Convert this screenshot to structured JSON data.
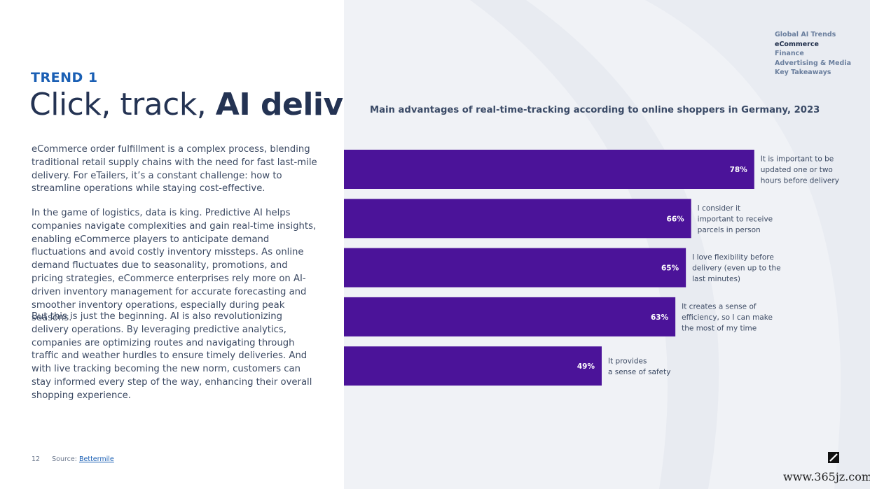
{
  "header": {
    "trend_label": "TREND 1",
    "headline_light": "Click, track, ",
    "headline_bold": "AI deliver"
  },
  "body": {
    "p1": "eCommerce order fulfillment is a complex process, blending traditional retail supply chains with the need for fast last-mile delivery. For eTailers, it’s a constant challenge: how to streamline operations while staying cost-effective.",
    "p2": "In the game of logistics, data is king. Predictive AI helps companies navigate complexities and gain real-time insights, enabling eCommerce players to anticipate demand fluctuations and avoid costly inventory missteps. As online demand fluctuates due to seasonality, promotions, and pricing strategies, eCommerce enterprises rely more on AI-driven inventory management for accurate forecasting and smoother inventory operations, especially during peak seasons.",
    "p3": "But this is just the beginning. AI is also revolutionizing delivery operations. By leveraging predictive analytics, companies are optimizing routes and navigating through traffic and weather hurdles to ensure timely deliveries. And with live tracking becoming the new norm, customers can stay informed every step of the way, enhancing their overall shopping experience."
  },
  "footer": {
    "page_number": "12",
    "source_prefix": "Source: ",
    "source_link": "Bettermile"
  },
  "nav": {
    "items": [
      {
        "label": "Global AI Trends",
        "active": false
      },
      {
        "label": "eCommerce",
        "active": true
      },
      {
        "label": "Finance",
        "active": false
      },
      {
        "label": "Advertising & Media",
        "active": false
      },
      {
        "label": "Key Takeaways",
        "active": false
      }
    ]
  },
  "colors": {
    "bar": "#4b1399",
    "bar_label": "#ffffff",
    "category_text": "#3c4a63",
    "accent": "#1a5fb4"
  },
  "watermark": "www.365jz.com",
  "chart_data": {
    "type": "bar",
    "orientation": "horizontal",
    "title": "Main advantages of real-time-tracking according to online shoppers in Germany, 2023",
    "value_suffix": "%",
    "xlim": [
      0,
      100
    ],
    "grid": false,
    "categories": [
      [
        "It is important to be",
        "updated one or two",
        "hours before delivery"
      ],
      [
        "I consider it",
        "important to receive",
        "parcels in person"
      ],
      [
        "I love flexibility before",
        "delivery (even up to the",
        "last minutes)"
      ],
      [
        "It creates a sense of",
        "efficiency, so I can make",
        "the most of my time"
      ],
      [
        "It provides",
        "a sense of safety"
      ]
    ],
    "values": [
      78,
      66,
      65,
      63,
      49
    ]
  }
}
